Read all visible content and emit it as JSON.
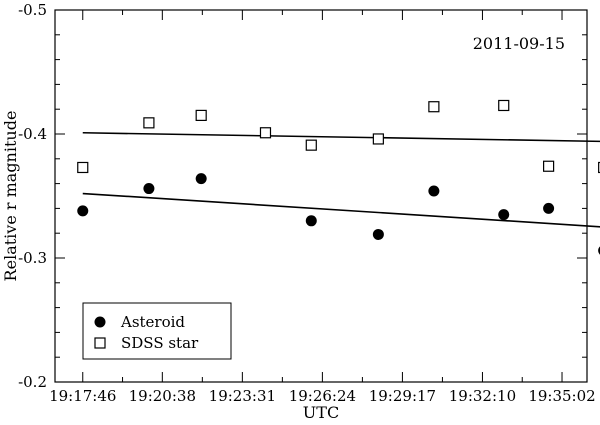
{
  "chart_data": {
    "type": "scatter",
    "title": "",
    "annotation": "2011-09-15",
    "xlabel": "UTC",
    "ylabel": "Relative r magnitude",
    "x_tick_labels": [
      "19:17:46",
      "19:20:38",
      "19:23:31",
      "19:26:24",
      "19:29:17",
      "19:32:10",
      "19:35:02"
    ],
    "x_ticks_seconds": [
      0,
      172,
      345,
      518,
      691,
      864,
      1036
    ],
    "x_range_seconds": [
      -60,
      1090
    ],
    "ylim": [
      -0.5,
      -0.2
    ],
    "y_inverted": true,
    "y_ticks": [
      -0.5,
      -0.4,
      -0.3,
      -0.2
    ],
    "y_tick_labels": [
      "-0.5",
      "-0.4",
      "-0.3",
      "-0.2"
    ],
    "legend_position": "bottom-left",
    "series": [
      {
        "name": "Asteroid",
        "marker": "filled-circle",
        "x_seconds": [
          0,
          143,
          256,
          494,
          639,
          759,
          910,
          1007,
          1126
        ],
        "y": [
          -0.338,
          -0.356,
          -0.364,
          -0.33,
          -0.319,
          -0.354,
          -0.335,
          -0.34,
          -0.306
        ],
        "fit": {
          "x_seconds": [
            0,
            1126
          ],
          "y": [
            -0.352,
            -0.325
          ]
        }
      },
      {
        "name": "SDSS star",
        "marker": "open-square",
        "x_seconds": [
          0,
          143,
          256,
          395,
          494,
          639,
          759,
          910,
          1007,
          1126
        ],
        "y": [
          -0.373,
          -0.409,
          -0.415,
          -0.401,
          -0.391,
          -0.396,
          -0.422,
          -0.423,
          -0.374,
          -0.373
        ],
        "fit": {
          "x_seconds": [
            0,
            1126
          ],
          "y": [
            -0.401,
            -0.394
          ]
        }
      }
    ]
  }
}
